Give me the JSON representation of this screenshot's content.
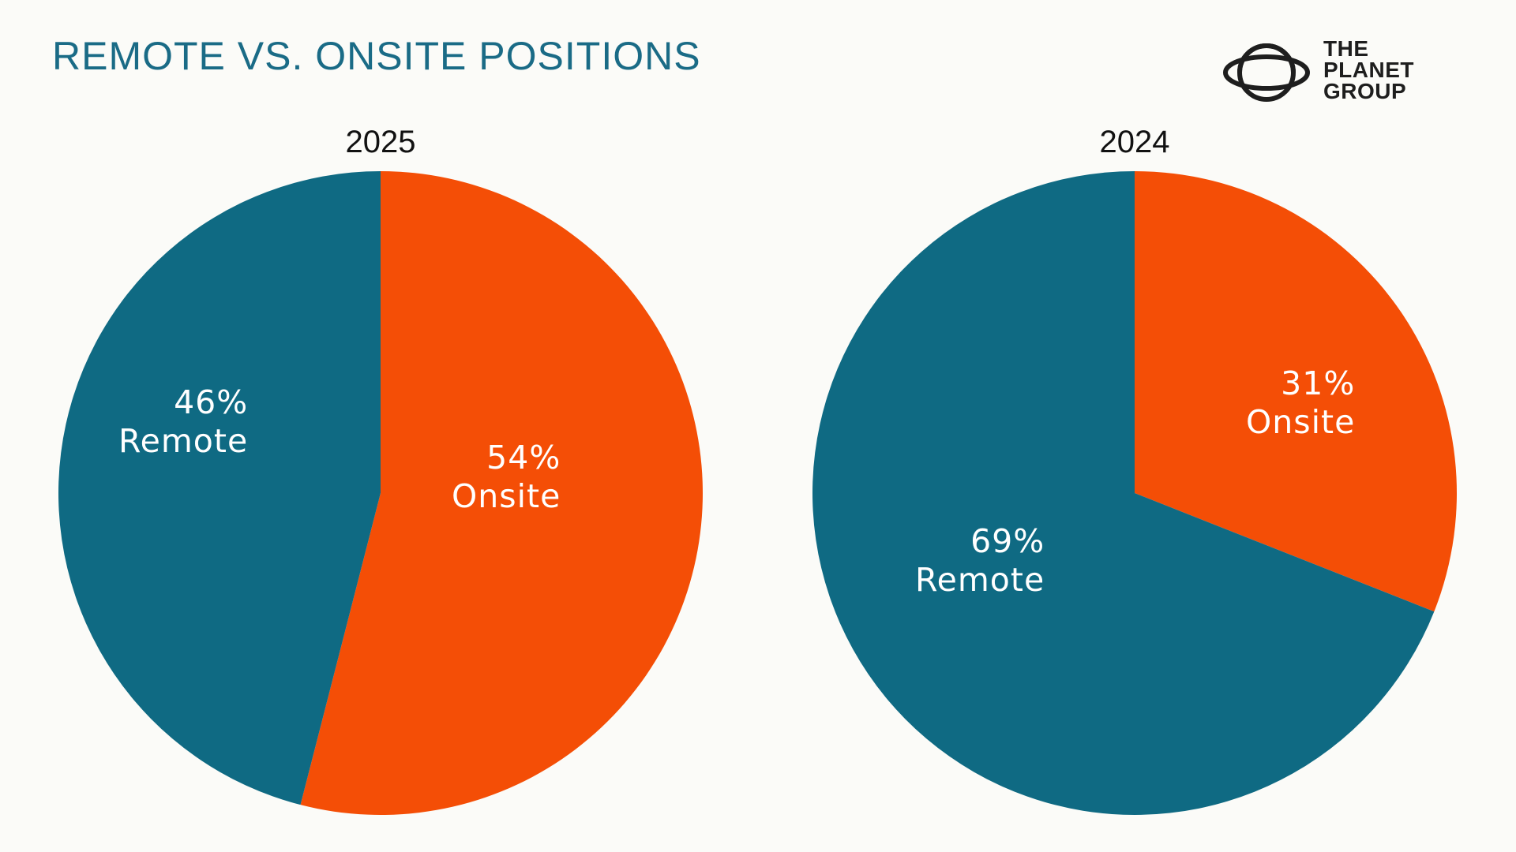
{
  "title": "REMOTE VS. ONSITE POSITIONS",
  "brand": {
    "line1": "THE",
    "line2": "PLANET",
    "line3": "GROUP",
    "icon": "planet-ring-icon"
  },
  "colors": {
    "remote": "#0f6a83",
    "onsite": "#f44e06",
    "title": "#1a6b86",
    "background": "#fbfbf8"
  },
  "chart_data": [
    {
      "type": "pie",
      "title": "2025",
      "slices": [
        {
          "label": "Onsite",
          "value": 54,
          "value_text": "54%"
        },
        {
          "label": "Remote",
          "value": 46,
          "value_text": "46%"
        }
      ]
    },
    {
      "type": "pie",
      "title": "2024",
      "slices": [
        {
          "label": "Onsite",
          "value": 31,
          "value_text": "31%"
        },
        {
          "label": "Remote",
          "value": 69,
          "value_text": "69%"
        }
      ]
    }
  ]
}
